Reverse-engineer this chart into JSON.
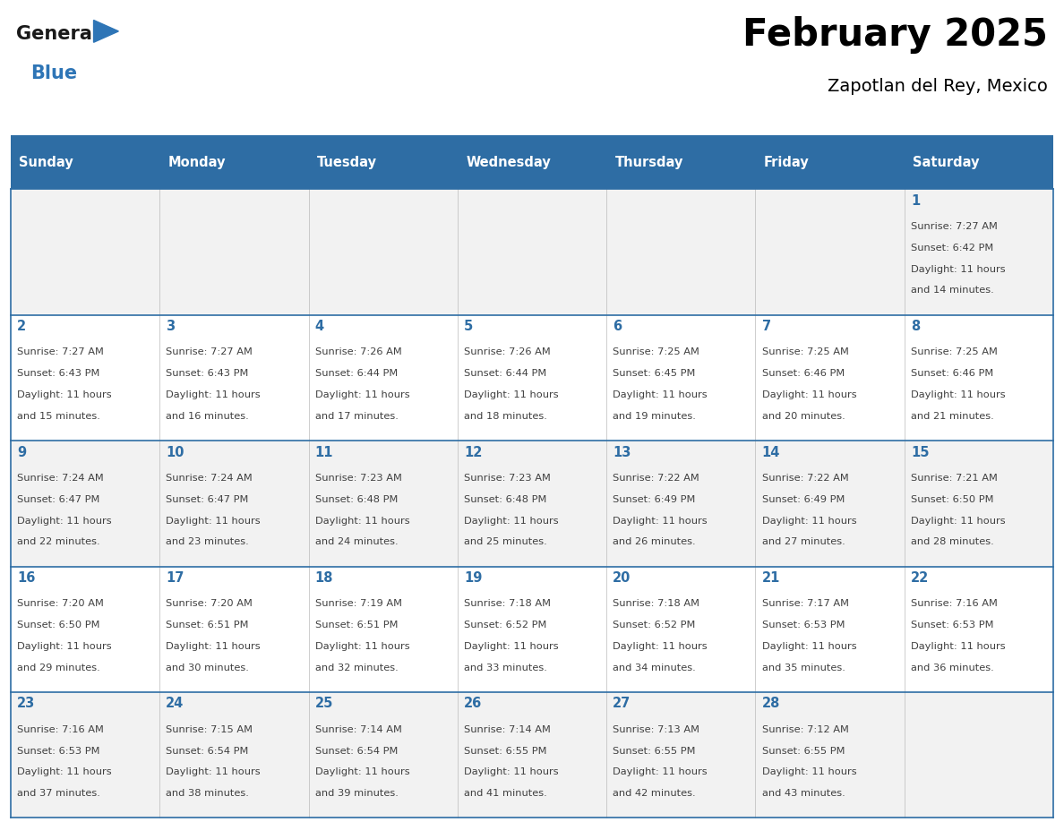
{
  "title": "February 2025",
  "subtitle": "Zapotlan del Rey, Mexico",
  "days_of_week": [
    "Sunday",
    "Monday",
    "Tuesday",
    "Wednesday",
    "Thursday",
    "Friday",
    "Saturday"
  ],
  "header_bg": "#2E6DA4",
  "header_text": "#FFFFFF",
  "cell_bg_odd": "#F2F2F2",
  "cell_bg_even": "#FFFFFF",
  "line_color": "#2E6DA4",
  "title_color": "#000000",
  "subtitle_color": "#000000",
  "day_num_color": "#2E6DA4",
  "cell_text_color": "#404040",
  "logo_general_color": "#1a1a1a",
  "logo_blue_color": "#2E75B6",
  "calendar": [
    [
      null,
      null,
      null,
      null,
      null,
      null,
      1
    ],
    [
      2,
      3,
      4,
      5,
      6,
      7,
      8
    ],
    [
      9,
      10,
      11,
      12,
      13,
      14,
      15
    ],
    [
      16,
      17,
      18,
      19,
      20,
      21,
      22
    ],
    [
      23,
      24,
      25,
      26,
      27,
      28,
      null
    ]
  ],
  "cell_data": {
    "1": {
      "sunrise": "7:27 AM",
      "sunset": "6:42 PM",
      "daylight_h": "11 hours",
      "daylight_m": "and 14 minutes."
    },
    "2": {
      "sunrise": "7:27 AM",
      "sunset": "6:43 PM",
      "daylight_h": "11 hours",
      "daylight_m": "and 15 minutes."
    },
    "3": {
      "sunrise": "7:27 AM",
      "sunset": "6:43 PM",
      "daylight_h": "11 hours",
      "daylight_m": "and 16 minutes."
    },
    "4": {
      "sunrise": "7:26 AM",
      "sunset": "6:44 PM",
      "daylight_h": "11 hours",
      "daylight_m": "and 17 minutes."
    },
    "5": {
      "sunrise": "7:26 AM",
      "sunset": "6:44 PM",
      "daylight_h": "11 hours",
      "daylight_m": "and 18 minutes."
    },
    "6": {
      "sunrise": "7:25 AM",
      "sunset": "6:45 PM",
      "daylight_h": "11 hours",
      "daylight_m": "and 19 minutes."
    },
    "7": {
      "sunrise": "7:25 AM",
      "sunset": "6:46 PM",
      "daylight_h": "11 hours",
      "daylight_m": "and 20 minutes."
    },
    "8": {
      "sunrise": "7:25 AM",
      "sunset": "6:46 PM",
      "daylight_h": "11 hours",
      "daylight_m": "and 21 minutes."
    },
    "9": {
      "sunrise": "7:24 AM",
      "sunset": "6:47 PM",
      "daylight_h": "11 hours",
      "daylight_m": "and 22 minutes."
    },
    "10": {
      "sunrise": "7:24 AM",
      "sunset": "6:47 PM",
      "daylight_h": "11 hours",
      "daylight_m": "and 23 minutes."
    },
    "11": {
      "sunrise": "7:23 AM",
      "sunset": "6:48 PM",
      "daylight_h": "11 hours",
      "daylight_m": "and 24 minutes."
    },
    "12": {
      "sunrise": "7:23 AM",
      "sunset": "6:48 PM",
      "daylight_h": "11 hours",
      "daylight_m": "and 25 minutes."
    },
    "13": {
      "sunrise": "7:22 AM",
      "sunset": "6:49 PM",
      "daylight_h": "11 hours",
      "daylight_m": "and 26 minutes."
    },
    "14": {
      "sunrise": "7:22 AM",
      "sunset": "6:49 PM",
      "daylight_h": "11 hours",
      "daylight_m": "and 27 minutes."
    },
    "15": {
      "sunrise": "7:21 AM",
      "sunset": "6:50 PM",
      "daylight_h": "11 hours",
      "daylight_m": "and 28 minutes."
    },
    "16": {
      "sunrise": "7:20 AM",
      "sunset": "6:50 PM",
      "daylight_h": "11 hours",
      "daylight_m": "and 29 minutes."
    },
    "17": {
      "sunrise": "7:20 AM",
      "sunset": "6:51 PM",
      "daylight_h": "11 hours",
      "daylight_m": "and 30 minutes."
    },
    "18": {
      "sunrise": "7:19 AM",
      "sunset": "6:51 PM",
      "daylight_h": "11 hours",
      "daylight_m": "and 32 minutes."
    },
    "19": {
      "sunrise": "7:18 AM",
      "sunset": "6:52 PM",
      "daylight_h": "11 hours",
      "daylight_m": "and 33 minutes."
    },
    "20": {
      "sunrise": "7:18 AM",
      "sunset": "6:52 PM",
      "daylight_h": "11 hours",
      "daylight_m": "and 34 minutes."
    },
    "21": {
      "sunrise": "7:17 AM",
      "sunset": "6:53 PM",
      "daylight_h": "11 hours",
      "daylight_m": "and 35 minutes."
    },
    "22": {
      "sunrise": "7:16 AM",
      "sunset": "6:53 PM",
      "daylight_h": "11 hours",
      "daylight_m": "and 36 minutes."
    },
    "23": {
      "sunrise": "7:16 AM",
      "sunset": "6:53 PM",
      "daylight_h": "11 hours",
      "daylight_m": "and 37 minutes."
    },
    "24": {
      "sunrise": "7:15 AM",
      "sunset": "6:54 PM",
      "daylight_h": "11 hours",
      "daylight_m": "and 38 minutes."
    },
    "25": {
      "sunrise": "7:14 AM",
      "sunset": "6:54 PM",
      "daylight_h": "11 hours",
      "daylight_m": "and 39 minutes."
    },
    "26": {
      "sunrise": "7:14 AM",
      "sunset": "6:55 PM",
      "daylight_h": "11 hours",
      "daylight_m": "and 41 minutes."
    },
    "27": {
      "sunrise": "7:13 AM",
      "sunset": "6:55 PM",
      "daylight_h": "11 hours",
      "daylight_m": "and 42 minutes."
    },
    "28": {
      "sunrise": "7:12 AM",
      "sunset": "6:55 PM",
      "daylight_h": "11 hours",
      "daylight_m": "and 43 minutes."
    }
  }
}
